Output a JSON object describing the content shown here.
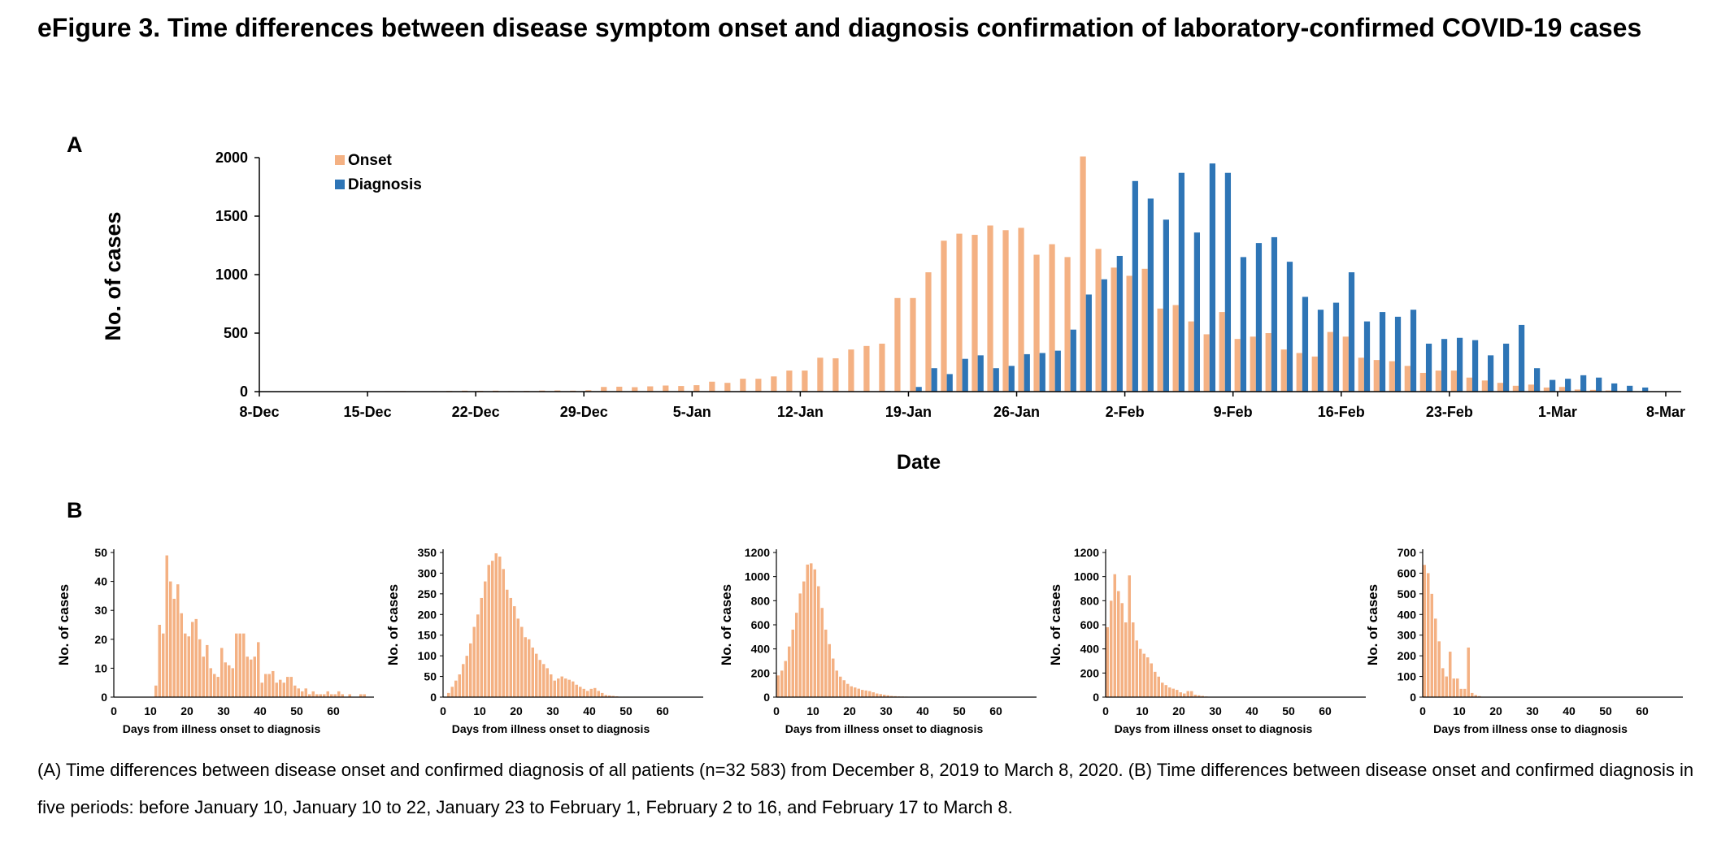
{
  "figure": {
    "title": "eFigure 3. Time differences between disease symptom onset and diagnosis confirmation of laboratory-confirmed COVID-19 cases",
    "panel_a_label": "A",
    "panel_b_label": "B",
    "caption": "(A) Time differences between disease onset and confirmed diagnosis of all patients (n=32 583) from December 8, 2019 to March 8, 2020. (B) Time differences between disease onset and confirmed diagnosis in five periods: before January 10, January 10 to 22, January 23 to February 1, February 2 to 16, and February 17 to March 8.",
    "colors": {
      "onset": "#F4B183",
      "diagnosis": "#2E75B6",
      "axis": "#000000"
    }
  },
  "chart_data": [
    {
      "type": "bar",
      "title": "",
      "xlabel": "Date",
      "ylabel": "No. of cases",
      "ylim": [
        0,
        2000
      ],
      "yticks": [
        0,
        500,
        1000,
        1500,
        2000
      ],
      "x_tick_labels": [
        "8-Dec",
        "15-Dec",
        "22-Dec",
        "29-Dec",
        "5-Jan",
        "12-Jan",
        "19-Jan",
        "26-Jan",
        "2-Feb",
        "9-Feb",
        "16-Feb",
        "23-Feb",
        "1-Mar",
        "8-Mar"
      ],
      "legend": {
        "placement": "top-left",
        "entries": [
          "Onset",
          "Diagnosis"
        ]
      },
      "series": [
        {
          "name": "Onset",
          "values": [
            0,
            0,
            1,
            1,
            2,
            3,
            2,
            3,
            4,
            5,
            3,
            4,
            6,
            8,
            7,
            8,
            5,
            6,
            9,
            10,
            8,
            12,
            40,
            42,
            38,
            45,
            52,
            48,
            55,
            85,
            75,
            110,
            110,
            130,
            180,
            180,
            290,
            285,
            360,
            390,
            410,
            800,
            800,
            1020,
            1290,
            1350,
            1340,
            1420,
            1380,
            1400,
            1170,
            1260,
            1150,
            2010,
            1220,
            1060,
            990,
            1050,
            710,
            740,
            600,
            490,
            680,
            450,
            470,
            500,
            360,
            330,
            300,
            510,
            470,
            290,
            270,
            260,
            220,
            160,
            180,
            180,
            120,
            95,
            75,
            50,
            60,
            35,
            40,
            18,
            15,
            10,
            5,
            3,
            2,
            1
          ]
        },
        {
          "name": "Diagnosis",
          "values": [
            0,
            0,
            0,
            0,
            0,
            0,
            0,
            0,
            0,
            0,
            0,
            0,
            0,
            0,
            0,
            0,
            0,
            0,
            0,
            0,
            0,
            0,
            0,
            0,
            0,
            0,
            0,
            0,
            0,
            0,
            0,
            0,
            0,
            0,
            0,
            0,
            0,
            0,
            0,
            0,
            5,
            5,
            40,
            200,
            150,
            280,
            310,
            200,
            220,
            320,
            330,
            350,
            530,
            830,
            960,
            1160,
            1800,
            1650,
            1470,
            1870,
            1360,
            1950,
            1870,
            1150,
            1270,
            1320,
            1110,
            810,
            700,
            760,
            1020,
            600,
            680,
            640,
            700,
            410,
            450,
            460,
            440,
            310,
            410,
            570,
            200,
            100,
            110,
            140,
            120,
            70,
            50,
            35
          ]
        }
      ]
    },
    {
      "type": "bar",
      "title": "Before January 10",
      "xlabel": "Days from illness  onset to diagnosis",
      "ylabel": "No. of cases",
      "ylim": [
        0,
        50
      ],
      "yticks": [
        0,
        10,
        20,
        30,
        40,
        50
      ],
      "xticks": [
        0,
        10,
        20,
        30,
        40,
        50,
        60
      ],
      "x": [
        11,
        12,
        13,
        14,
        15,
        16,
        17,
        18,
        19,
        20,
        21,
        22,
        23,
        24,
        25,
        26,
        27,
        28,
        29,
        30,
        31,
        32,
        33,
        34,
        35,
        36,
        37,
        38,
        39,
        40,
        41,
        42,
        43,
        44,
        45,
        46,
        47,
        48,
        49,
        50,
        51,
        52,
        53,
        54,
        55,
        56,
        57,
        58,
        59,
        60,
        61,
        62,
        63,
        64,
        65,
        66,
        67,
        68
      ],
      "values": [
        4,
        25,
        22,
        49,
        40,
        34,
        39,
        29,
        22,
        21,
        26,
        27,
        20,
        14,
        18,
        10,
        8,
        7,
        17,
        12,
        11,
        10,
        22,
        22,
        22,
        14,
        13,
        14,
        19,
        5,
        8,
        8,
        9,
        5,
        6,
        5,
        7,
        7,
        4,
        3,
        2,
        3,
        1,
        2,
        1,
        1,
        1,
        2,
        1,
        1,
        2,
        1,
        0,
        1,
        0,
        0,
        1,
        1
      ]
    },
    {
      "type": "bar",
      "title": "January 10 to 22",
      "xlabel": "Days from illness  onset to diagnosis",
      "ylabel": "No. of cases",
      "ylim": [
        0,
        350
      ],
      "yticks": [
        0,
        50,
        100,
        150,
        200,
        250,
        300,
        350
      ],
      "xticks": [
        0,
        10,
        20,
        30,
        40,
        50,
        60
      ],
      "x": [
        1,
        2,
        3,
        4,
        5,
        6,
        7,
        8,
        9,
        10,
        11,
        12,
        13,
        14,
        15,
        16,
        17,
        18,
        19,
        20,
        21,
        22,
        23,
        24,
        25,
        26,
        27,
        28,
        29,
        30,
        31,
        32,
        33,
        34,
        35,
        36,
        37,
        38,
        39,
        40,
        41,
        42,
        43,
        44,
        45,
        46,
        47,
        48,
        49,
        50,
        51,
        52,
        53
      ],
      "values": [
        10,
        25,
        40,
        55,
        80,
        100,
        130,
        170,
        200,
        240,
        280,
        320,
        330,
        348,
        340,
        310,
        260,
        240,
        220,
        190,
        170,
        145,
        140,
        120,
        105,
        90,
        80,
        70,
        55,
        40,
        45,
        50,
        45,
        42,
        38,
        30,
        25,
        20,
        15,
        20,
        22,
        15,
        10,
        5,
        4,
        3,
        2,
        1,
        1,
        1,
        1,
        1,
        1
      ]
    },
    {
      "type": "bar",
      "title": "January 23 to February 1",
      "xlabel": "Days from illness  onset to diagnosis",
      "ylabel": "No. of cases",
      "ylim": [
        0,
        1200
      ],
      "yticks": [
        0,
        200,
        400,
        600,
        800,
        1000,
        1200
      ],
      "xticks": [
        0,
        10,
        20,
        30,
        40,
        50,
        60
      ],
      "x": [
        0,
        1,
        2,
        3,
        4,
        5,
        6,
        7,
        8,
        9,
        10,
        11,
        12,
        13,
        14,
        15,
        16,
        17,
        18,
        19,
        20,
        21,
        22,
        23,
        24,
        25,
        26,
        27,
        28,
        29,
        30,
        31,
        32,
        33,
        34,
        35,
        36,
        37,
        38,
        39,
        40
      ],
      "values": [
        180,
        220,
        300,
        420,
        560,
        700,
        860,
        960,
        1100,
        1110,
        1060,
        920,
        740,
        560,
        440,
        320,
        220,
        170,
        140,
        110,
        90,
        80,
        70,
        60,
        55,
        50,
        40,
        30,
        25,
        20,
        15,
        10,
        8,
        6,
        5,
        4,
        3,
        2,
        2,
        1,
        1
      ]
    },
    {
      "type": "bar",
      "title": "February 2 to 16",
      "xlabel": "Days from illness  onset to diagnosis",
      "ylabel": "No. of cases",
      "ylim": [
        0,
        1200
      ],
      "yticks": [
        0,
        200,
        400,
        600,
        800,
        1000,
        1200
      ],
      "xticks": [
        0,
        10,
        20,
        30,
        40,
        50,
        60
      ],
      "x": [
        0,
        1,
        2,
        3,
        4,
        5,
        6,
        7,
        8,
        9,
        10,
        11,
        12,
        13,
        14,
        15,
        16,
        17,
        18,
        19,
        20,
        21,
        22,
        23,
        24,
        25,
        26,
        27,
        28,
        29
      ],
      "values": [
        580,
        800,
        1020,
        880,
        780,
        620,
        1010,
        620,
        470,
        400,
        360,
        330,
        280,
        210,
        170,
        120,
        100,
        80,
        70,
        60,
        40,
        30,
        50,
        50,
        20,
        15,
        10,
        5,
        3,
        2
      ]
    },
    {
      "type": "bar",
      "title": "February 17 to March 8",
      "xlabel": "Days from illness  onse to diagnosis",
      "ylabel": "No. of cases",
      "ylim": [
        0,
        700
      ],
      "yticks": [
        0,
        100,
        200,
        300,
        400,
        500,
        600,
        700
      ],
      "xticks": [
        0,
        10,
        20,
        30,
        40,
        50,
        60
      ],
      "x": [
        0,
        1,
        2,
        3,
        4,
        5,
        6,
        7,
        8,
        9,
        10,
        11,
        12,
        13,
        14,
        15
      ],
      "values": [
        640,
        600,
        500,
        380,
        270,
        140,
        100,
        220,
        90,
        90,
        40,
        40,
        240,
        20,
        10,
        5
      ]
    }
  ]
}
